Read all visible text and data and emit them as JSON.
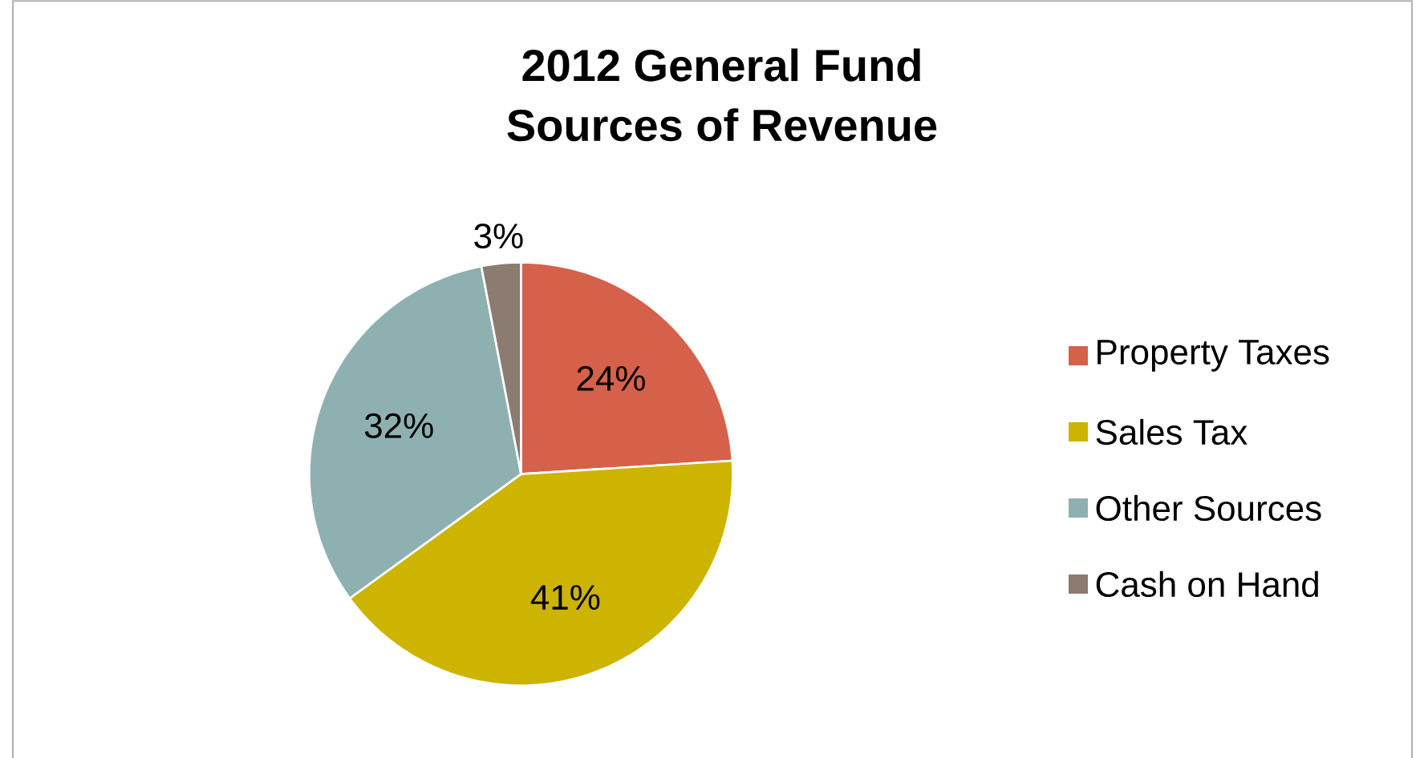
{
  "chart_data": {
    "type": "pie",
    "title": "2012 General Fund\nSources of Revenue",
    "categories": [
      "Property Taxes",
      "Sales Tax",
      "Other Sources",
      "Cash on Hand"
    ],
    "values": [
      24,
      41,
      32,
      3
    ],
    "value_labels": [
      "24%",
      "41%",
      "32%",
      "3%"
    ],
    "colors": [
      "#d5614a",
      "#ccb400",
      "#8fb0b0",
      "#8c7b70"
    ],
    "legend": "right"
  }
}
